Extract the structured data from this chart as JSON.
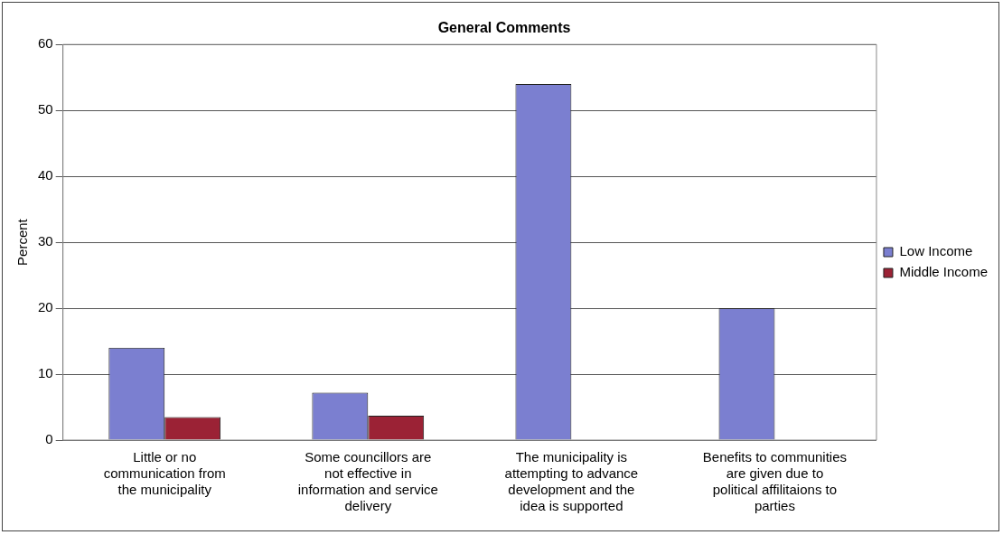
{
  "chart_data": {
    "type": "bar",
    "title": "General Comments",
    "ylabel": "Percent",
    "categories": [
      "Little or no communication from the municipality",
      "Some councillors are not effective in information and service delivery",
      "The municipality is attempting to advance development and the idea is supported",
      "Benefits to communities are given due to political affilitaions to parties"
    ],
    "series": [
      {
        "name": "Low Income",
        "color": "#7b7fd0",
        "values": [
          14,
          7.2,
          54,
          20
        ]
      },
      {
        "name": "Middle Income",
        "color": "#9b2235",
        "values": [
          3.5,
          3.7,
          0,
          0
        ]
      }
    ],
    "ylim": [
      0,
      60
    ],
    "yticks": [
      0,
      10,
      20,
      30,
      40,
      50,
      60
    ],
    "grid": "y",
    "legend": "right"
  }
}
